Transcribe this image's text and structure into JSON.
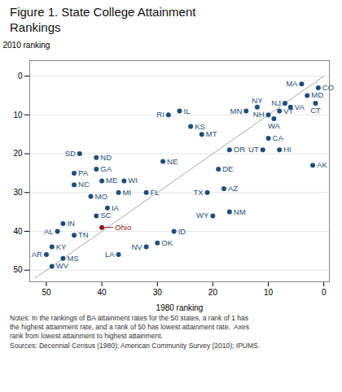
{
  "chart_data": {
    "type": "scatter",
    "title": "Figure 1. State College Attainment\nRankings",
    "xlabel": "1980 ranking",
    "ylabel": "2010 ranking",
    "caption": "Notes: In the rankings of BA attainment rates for the 50 states, a rank of 1 has\nthe highest attainment rate, and a rank of 50 has lowest attainment rate.  Axes\nrank from lowest attainment to highest attainment.\nSources: Decennial Census (1980); American Community Survey (2010); IPUMS.",
    "color": "#1f4e79",
    "xlim": [
      53,
      -1
    ],
    "ylim": [
      53,
      -4
    ],
    "xticks": [
      50,
      40,
      30,
      20,
      10,
      0
    ],
    "yticks": [
      0,
      10,
      20,
      30,
      40,
      50
    ],
    "grid": "y",
    "lines": [
      {
        "x": [
          0,
          52
        ],
        "y": [
          0,
          52
        ],
        "color": "#aaaaaa"
      }
    ],
    "labels": [
      "MA",
      "CO",
      "MD",
      "CT",
      "NJ",
      "VA",
      "VT",
      "WA",
      "NH",
      "NY",
      "MN",
      "CA",
      "UT",
      "HI",
      "AK",
      "OR",
      "IL",
      "RI",
      "KS",
      "MT",
      "DE",
      "NE",
      "SD",
      "ND",
      "GA",
      "WI",
      "ME",
      "MI",
      "FL",
      "PA",
      "NC",
      "MO",
      "IA",
      "SC",
      "AZ",
      "TX",
      "NM",
      "WY",
      "Ohio",
      "IN",
      "AL",
      "TN",
      "ID",
      "OK",
      "NV",
      "LA",
      "KY",
      "AR",
      "MS",
      "WV"
    ],
    "x": [
      4,
      1,
      3,
      1.5,
      7,
      6,
      8,
      9,
      10,
      12,
      14,
      10,
      11,
      8,
      2,
      17,
      26,
      28,
      24,
      22,
      19,
      29,
      44,
      41,
      41,
      36,
      40,
      37,
      32,
      45,
      45,
      42,
      39,
      41,
      18,
      21,
      17,
      20,
      40,
      47,
      48,
      45,
      27,
      30,
      32,
      37,
      49,
      50,
      47,
      49
    ],
    "y": [
      2,
      3,
      5,
      7,
      7,
      8,
      9,
      11,
      10,
      8,
      9,
      16,
      19,
      19,
      23,
      19,
      9,
      10,
      13,
      15,
      24,
      22,
      20,
      21,
      24,
      27,
      27,
      30,
      30,
      25,
      28,
      31,
      34,
      36,
      29,
      30,
      35,
      36,
      39,
      38,
      40,
      41,
      40,
      43,
      44,
      46,
      44,
      46,
      47,
      49
    ],
    "colors": [
      "#1f4e79",
      "#1f4e79",
      "#1f4e79",
      "#1f4e79",
      "#1f4e79",
      "#1f4e79",
      "#1f4e79",
      "#1f4e79",
      "#1f4e79",
      "#1f4e79",
      "#1f4e79",
      "#1f4e79",
      "#1f4e79",
      "#1f4e79",
      "#1f4e79",
      "#1f4e79",
      "#1f4e79",
      "#1f4e79",
      "#1f4e79",
      "#1f4e79",
      "#1f4e79",
      "#1f4e79",
      "#1f4e79",
      "#1f4e79",
      "#1f4e79",
      "#1f4e79",
      "#1f4e79",
      "#1f4e79",
      "#1f4e79",
      "#1f4e79",
      "#1f4e79",
      "#1f4e79",
      "#1f4e79",
      "#1f4e79",
      "#1f4e79",
      "#1f4e79",
      "#1f4e79",
      "#1f4e79",
      "#8b1a1a",
      "#1f4e79",
      "#1f4e79",
      "#1f4e79",
      "#1f4e79",
      "#1f4e79",
      "#1f4e79",
      "#1f4e79",
      "#1f4e79",
      "#1f4e79",
      "#1f4e79",
      "#1f4e79"
    ]
  }
}
